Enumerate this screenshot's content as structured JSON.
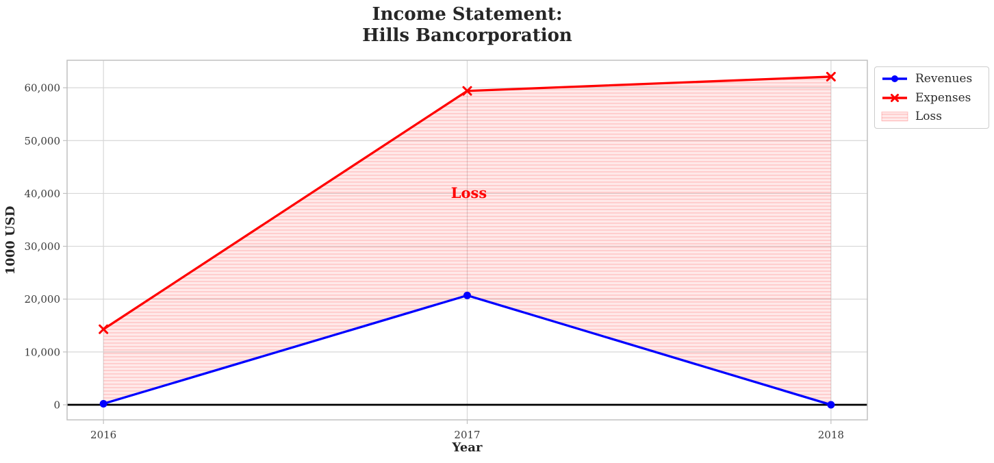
{
  "chart_data": {
    "type": "line",
    "title_lines": [
      "Income Statement:",
      "Hills Bancorporation"
    ],
    "xlabel": "Year",
    "ylabel": "1000 USD",
    "x": [
      2016,
      2017,
      2018
    ],
    "x_tick_labels": [
      "2016",
      "2017",
      "2018"
    ],
    "y_ticks": [
      0,
      10000,
      20000,
      30000,
      40000,
      50000,
      60000
    ],
    "y_tick_labels": [
      "0",
      "10,000",
      "20,000",
      "30,000",
      "40,000",
      "50,000",
      "60,000"
    ],
    "xlim": [
      2015.9,
      2018.1
    ],
    "ylim": [
      -2850,
      65200
    ],
    "grid": true,
    "zero_line": true,
    "series": [
      {
        "name": "Revenues",
        "color": "#0000ff",
        "marker": "circle",
        "values": [
          200,
          20700,
          0
        ]
      },
      {
        "name": "Expenses",
        "color": "#ff0000",
        "marker": "x",
        "values": [
          14300,
          59400,
          62100
        ]
      }
    ],
    "fill_between": {
      "name": "Loss",
      "lower_series": "Revenues",
      "upper_series": "Expenses",
      "hatch": "horizontal",
      "color": "#ff0000"
    },
    "annotation": {
      "text": "Loss",
      "x": 2017,
      "y": 40000,
      "color": "#ff0000"
    },
    "legend": {
      "position": "upper-right-outside",
      "entries": [
        {
          "label": "Revenues",
          "swatch": "line-circle",
          "color": "#0000ff"
        },
        {
          "label": "Expenses",
          "swatch": "line-x",
          "color": "#ff0000"
        },
        {
          "label": "Loss",
          "swatch": "hatch-patch",
          "color": "#ffcccc"
        }
      ]
    }
  },
  "colors": {
    "revenues_line": "#0000ff",
    "expenses_line": "#ff0000",
    "loss_fill_bg": "rgba(255,0,0,0.085)",
    "loss_fill_stripe": "rgba(255,0,0,0.13)",
    "gridline": "#d7d7d7",
    "axis_border": "#c0c0c0",
    "tick_label": "#3a3a3a",
    "zero_line": "#000000"
  }
}
